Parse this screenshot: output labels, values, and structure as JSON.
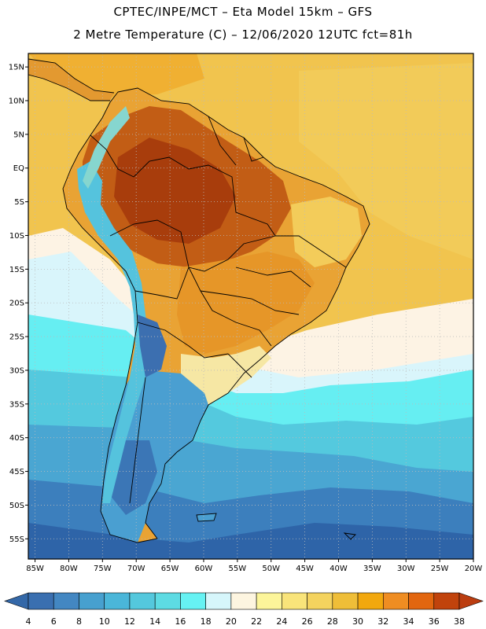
{
  "header": {
    "line1": "CPTEC/INPE/MCT –  Eta Model 15km – GFS",
    "line2": "2 Metre Temperature (C) – 12/06/2020 12UTC fct=81h"
  },
  "map": {
    "region": "South America",
    "variable": "2 Metre Temperature",
    "units": "C",
    "lon_range": [
      -86,
      -20
    ],
    "lat_range": [
      -58,
      17
    ],
    "lat_ticks": [
      {
        "value": 15,
        "label": "15N"
      },
      {
        "value": 10,
        "label": "10N"
      },
      {
        "value": 5,
        "label": "5N"
      },
      {
        "value": 0,
        "label": "EQ"
      },
      {
        "value": -5,
        "label": "5S"
      },
      {
        "value": -10,
        "label": "10S"
      },
      {
        "value": -15,
        "label": "15S"
      },
      {
        "value": -20,
        "label": "20S"
      },
      {
        "value": -25,
        "label": "25S"
      },
      {
        "value": -30,
        "label": "30S"
      },
      {
        "value": -35,
        "label": "35S"
      },
      {
        "value": -40,
        "label": "40S"
      },
      {
        "value": -45,
        "label": "45S"
      },
      {
        "value": -50,
        "label": "50S"
      },
      {
        "value": -55,
        "label": "55S"
      }
    ],
    "lon_ticks": [
      {
        "value": -85,
        "label": "85W"
      },
      {
        "value": -80,
        "label": "80W"
      },
      {
        "value": -75,
        "label": "75W"
      },
      {
        "value": -70,
        "label": "70W"
      },
      {
        "value": -65,
        "label": "65W"
      },
      {
        "value": -60,
        "label": "60W"
      },
      {
        "value": -55,
        "label": "55W"
      },
      {
        "value": -50,
        "label": "50W"
      },
      {
        "value": -45,
        "label": "45W"
      },
      {
        "value": -40,
        "label": "40W"
      },
      {
        "value": -35,
        "label": "35W"
      },
      {
        "value": -30,
        "label": "30W"
      },
      {
        "value": -25,
        "label": "25W"
      },
      {
        "value": -20,
        "label": "20W"
      }
    ],
    "grid": "dotted"
  },
  "colorbar": {
    "levels": [
      4,
      6,
      8,
      10,
      12,
      14,
      16,
      18,
      20,
      22,
      24,
      26,
      28,
      30,
      32,
      34,
      36,
      38
    ],
    "colors": [
      "#3a6fb0",
      "#4387c2",
      "#47a0cf",
      "#4ab6d9",
      "#54c8dd",
      "#5ddbe3",
      "#66f2f3",
      "#d6f6fb",
      "#fdf5e0",
      "#fcf59a",
      "#f9e47a",
      "#f4d35e",
      "#efbe38",
      "#f2a80e",
      "#ef8d22",
      "#e2660f",
      "#c1430c"
    ],
    "low_arrow_color": "#3468a8",
    "high_arrow_color": "#bb3d10"
  },
  "palette": {
    "ocean_cold": "#2d63a8",
    "ocean_cool": "#4a9cd0",
    "ocean_mild": "#5fd0e2",
    "ocean_warm": "#f6d678",
    "land_hot": "#bd4a10",
    "land_warm": "#e8a030",
    "andes_cold": "#3c6fb0",
    "boundary": "#000000"
  }
}
